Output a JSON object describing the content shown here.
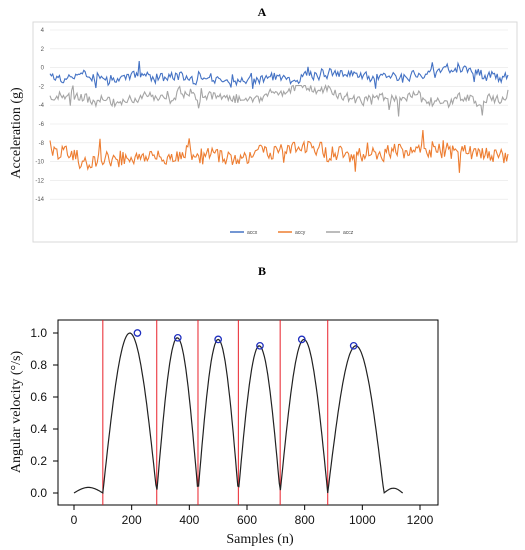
{
  "chart_data": [
    {
      "label": "A",
      "type": "line",
      "ylabel": "Acceleration (g)",
      "ylim": [
        -16,
        4
      ],
      "yticks": [
        4,
        2,
        0,
        -2,
        -4,
        -6,
        -8,
        -10,
        -12,
        -14
      ],
      "grid": true,
      "legend_position": "bottom-center",
      "series": [
        {
          "name": "accx",
          "color": "#4472C4",
          "mean": -0.7,
          "range": [
            -2.4,
            1.5
          ]
        },
        {
          "name": "accy",
          "color": "#ED7D31",
          "mean": -9.2,
          "range": [
            -11.9,
            -6.1
          ]
        },
        {
          "name": "accz",
          "color": "#A5A5A5",
          "mean": -3.1,
          "range": [
            -5.2,
            -1.9
          ]
        }
      ]
    },
    {
      "label": "B",
      "type": "line",
      "xlabel": "Samples (n)",
      "ylabel": "Angular velocity (°/s)",
      "xlim": [
        0,
        1200
      ],
      "ylim": [
        0,
        1.0
      ],
      "xticks": [
        0,
        200,
        400,
        600,
        800,
        1000,
        1200
      ],
      "yticks": [
        0.0,
        0.2,
        0.4,
        0.6,
        0.8,
        1.0
      ],
      "segment_boundaries": [
        100,
        287,
        430,
        570,
        715,
        880
      ],
      "peaks": [
        {
          "x": 220,
          "y": 1.0
        },
        {
          "x": 360,
          "y": 0.97
        },
        {
          "x": 500,
          "y": 0.96
        },
        {
          "x": 645,
          "y": 0.92
        },
        {
          "x": 790,
          "y": 0.96
        },
        {
          "x": 970,
          "y": 0.92
        }
      ],
      "colors": {
        "curve": "#222222",
        "boundary": "#E8202A",
        "peak": "#1F2FBF"
      }
    }
  ]
}
